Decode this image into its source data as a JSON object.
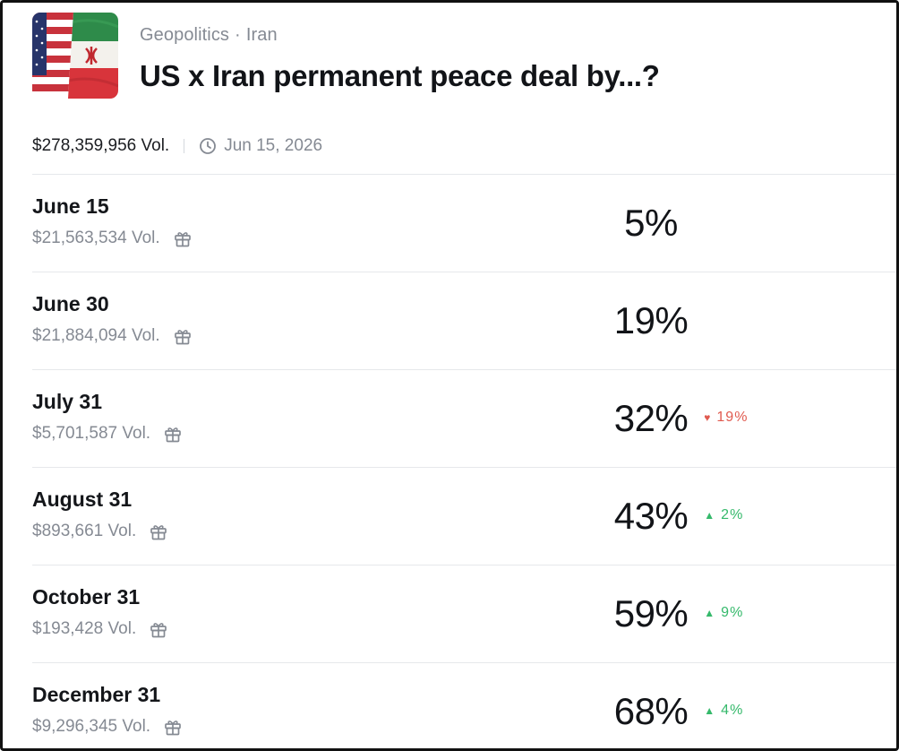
{
  "market": {
    "category": "Geopolitics",
    "separator": "·",
    "subcategory": "Iran",
    "title": "US x Iran permanent peace deal by...?",
    "total_volume": "$278,359,956 Vol.",
    "end_date": "Jun 15, 2026",
    "image": "us-iran-flags"
  },
  "rows": [
    {
      "label": "June 15",
      "volume": "$21,563,534 Vol.",
      "probability": "5%",
      "change": "",
      "direction": ""
    },
    {
      "label": "June 30",
      "volume": "$21,884,094 Vol.",
      "probability": "19%",
      "change": "",
      "direction": ""
    },
    {
      "label": "July 31",
      "volume": "$5,701,587 Vol.",
      "probability": "32%",
      "change": "19%",
      "direction": "down"
    },
    {
      "label": "August 31",
      "volume": "$893,661 Vol.",
      "probability": "43%",
      "change": "2%",
      "direction": "up"
    },
    {
      "label": "October 31",
      "volume": "$193,428 Vol.",
      "probability": "59%",
      "change": "9%",
      "direction": "up"
    },
    {
      "label": "December 31",
      "volume": "$9,296,345 Vol.",
      "probability": "68%",
      "change": "4%",
      "direction": "up"
    }
  ],
  "icons": {
    "clock": "clock-icon",
    "gift": "gift-icon",
    "arrow_up": "▲",
    "arrow_down": "♥"
  },
  "colors": {
    "up": "#35b96b",
    "down": "#e05a4f",
    "muted": "#858a93"
  }
}
